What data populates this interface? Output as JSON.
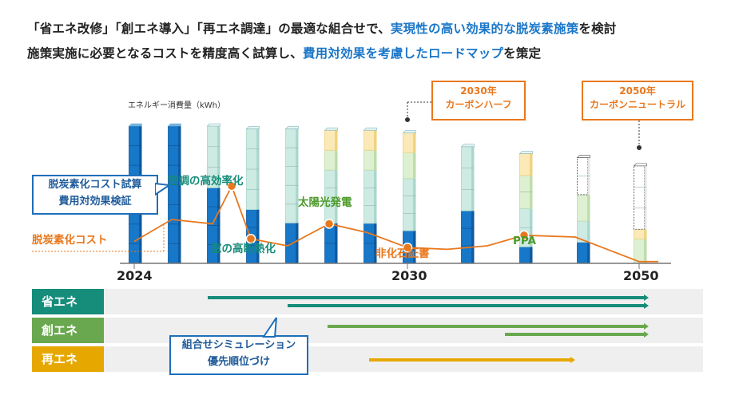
{
  "intro": {
    "line1_plain": "「省エネ改修」「創エネ導入」「再エネ調達」の最適な組合せで、",
    "line1_highlight": "実現性の高い効果的な脱炭素施策",
    "line1_tail": "を検討",
    "line2_plain": "施策実施に必要となるコストを精度高く試算し、",
    "line2_highlight": "費用対効果を考慮したロードマップ",
    "line2_tail": "を策定"
  },
  "colors": {
    "accent_blue": "#1a76c8",
    "orange": "#e8781e",
    "teal": "#168c7a",
    "green": "#6aa84f",
    "yellow": "#e6a800"
  },
  "chart_data": {
    "type": "bar",
    "ylabel": "エネルギー消費量（kWh）",
    "x_tick_labels": [
      "2024",
      "2030",
      "2050"
    ],
    "bars": [
      {
        "blue": 1.0,
        "teal": 0.0,
        "green": 0.0,
        "yellow": 0.0,
        "white": 0.0
      },
      {
        "blue": 1.0,
        "teal": 0.0,
        "green": 0.0,
        "yellow": 0.0,
        "white": 0.0
      },
      {
        "blue": 0.55,
        "teal": 0.45,
        "green": 0.0,
        "yellow": 0.0,
        "white": 0.0
      },
      {
        "blue": 0.4,
        "teal": 0.6,
        "green": 0.0,
        "yellow": 0.0,
        "white": 0.0
      },
      {
        "blue": 0.3,
        "teal": 0.7,
        "green": 0.0,
        "yellow": 0.0,
        "white": 0.0
      },
      {
        "blue": 0.3,
        "teal": 0.4,
        "green": 0.15,
        "yellow": 0.15,
        "white": 0.0
      },
      {
        "blue": 0.3,
        "teal": 0.4,
        "green": 0.15,
        "yellow": 0.15,
        "white": 0.0
      },
      {
        "blue": 0.25,
        "teal": 0.4,
        "green": 0.2,
        "yellow": 0.15,
        "white": 0.0
      },
      {
        "blue": 0.45,
        "teal": 0.55,
        "green": 0.0,
        "yellow": 0.0,
        "white": 0.0
      },
      {
        "blue": 0.15,
        "teal": 0.35,
        "green": 0.3,
        "yellow": 0.2,
        "white": 0.0
      },
      {
        "blue": 0.2,
        "teal": 0.2,
        "green": 0.25,
        "yellow": 0.0,
        "white": 0.35
      },
      {
        "blue": 0.0,
        "teal": 0.0,
        "green": 0.25,
        "yellow": 0.1,
        "white": 0.65
      }
    ],
    "bar_heights": [
      1.0,
      1.0,
      1.0,
      0.98,
      0.98,
      0.97,
      0.97,
      0.95,
      0.85,
      0.8,
      0.77,
      0.71
    ],
    "cost_line": [
      0.25,
      0.5,
      0.45,
      0.88,
      0.28,
      0.2,
      0.45,
      0.35,
      0.18,
      0.16,
      0.2,
      0.32,
      0.3,
      0.02,
      0.02
    ],
    "cost_series_label": "脱炭素化コスト",
    "annotations": {
      "cooling": "空調の高効率化",
      "window": "窓の高断熱化",
      "solar": "太陽光発電",
      "nonfossil": "非化石証書",
      "ppa": "PPA"
    }
  },
  "callouts": {
    "half_title": "2030年",
    "half_sub": "カーボンハーフ",
    "neutral_title": "2050年",
    "neutral_sub": "カーボンニュートラル",
    "cost_box_line1": "脱炭素化コスト試算",
    "cost_box_line2": "費用対効果検証",
    "sim_box_line1": "組合せシミュレーション",
    "sim_box_line2": "優先順位づけ"
  },
  "timeline": {
    "rows": [
      {
        "label": "省エネ",
        "color": "#168c7a"
      },
      {
        "label": "創エネ",
        "color": "#6aa84f"
      },
      {
        "label": "再エネ",
        "color": "#e6a800"
      }
    ]
  }
}
